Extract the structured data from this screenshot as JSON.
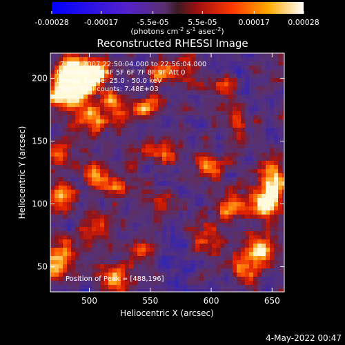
{
  "chart_data": {
    "type": "heatmap",
    "title": "Reconstructed RHESSI Image",
    "xlabel": "Heliocentric X (arcsec)",
    "ylabel": "Heliocentric Y (arcsec)",
    "xlim": [
      468,
      660
    ],
    "ylim": [
      30,
      220
    ],
    "x_ticks": [
      500,
      550,
      600,
      650
    ],
    "y_ticks": [
      50,
      100,
      150,
      200
    ],
    "colorbar": {
      "range": [
        -0.00028,
        0.00028
      ],
      "tick_labels": [
        "-0.00028",
        "-0.00017",
        "-5.5e-05",
        "5.5e-05",
        "0.00017",
        "0.00028"
      ],
      "tick_values": [
        -0.00028,
        -0.00017,
        -5.5e-05,
        5.5e-05,
        0.00017,
        0.00028
      ],
      "units_base": "(photons cm",
      "units_exp1": "-2",
      "units_mid1": " s",
      "units_exp2": "-1",
      "units_mid2": " asec",
      "units_exp3": "-2",
      "units_end": ")"
    },
    "annotations": {
      "time": "7-Dec-2007 22:50:04.000 to 22:56:04.000",
      "detectors": "Detectors: 3F 4F 5F 6F 7F 8F 9F Att 0",
      "energy": "Energy Range: 25.0 - 50.0 keV",
      "method": "Clean     Total counts: 7.48E+03",
      "peak": "Position of Peak = [488,196]"
    },
    "peak_position": [
      488,
      196
    ],
    "bright_sources": [
      {
        "x": 482,
        "y": 205,
        "v": 0.9
      },
      {
        "x": 492,
        "y": 196,
        "v": 1.0
      },
      {
        "x": 505,
        "y": 205,
        "v": 0.8
      },
      {
        "x": 478,
        "y": 185,
        "v": 0.8
      },
      {
        "x": 500,
        "y": 168,
        "v": 0.7
      },
      {
        "x": 520,
        "y": 176,
        "v": 0.6
      },
      {
        "x": 545,
        "y": 178,
        "v": 0.6
      },
      {
        "x": 560,
        "y": 205,
        "v": 0.55
      },
      {
        "x": 470,
        "y": 140,
        "v": 0.6
      },
      {
        "x": 478,
        "y": 105,
        "v": 0.7
      },
      {
        "x": 505,
        "y": 125,
        "v": 0.55
      },
      {
        "x": 525,
        "y": 112,
        "v": 0.5
      },
      {
        "x": 560,
        "y": 140,
        "v": 0.5
      },
      {
        "x": 555,
        "y": 100,
        "v": 0.5
      },
      {
        "x": 598,
        "y": 130,
        "v": 0.55
      },
      {
        "x": 612,
        "y": 188,
        "v": 0.55
      },
      {
        "x": 622,
        "y": 160,
        "v": 0.5
      },
      {
        "x": 645,
        "y": 130,
        "v": 0.5
      },
      {
        "x": 645,
        "y": 96,
        "v": 0.8
      },
      {
        "x": 652,
        "y": 112,
        "v": 0.7
      },
      {
        "x": 620,
        "y": 100,
        "v": 0.6
      },
      {
        "x": 600,
        "y": 72,
        "v": 0.55
      },
      {
        "x": 640,
        "y": 62,
        "v": 0.75
      },
      {
        "x": 628,
        "y": 48,
        "v": 0.6
      },
      {
        "x": 520,
        "y": 40,
        "v": 0.75
      },
      {
        "x": 480,
        "y": 65,
        "v": 0.6
      },
      {
        "x": 505,
        "y": 82,
        "v": 0.5
      },
      {
        "x": 545,
        "y": 60,
        "v": 0.5
      },
      {
        "x": 583,
        "y": 205,
        "v": 0.45
      },
      {
        "x": 470,
        "y": 50,
        "v": 0.5
      }
    ]
  },
  "footer": {
    "timestamp": "4-May-2022 00:47"
  }
}
